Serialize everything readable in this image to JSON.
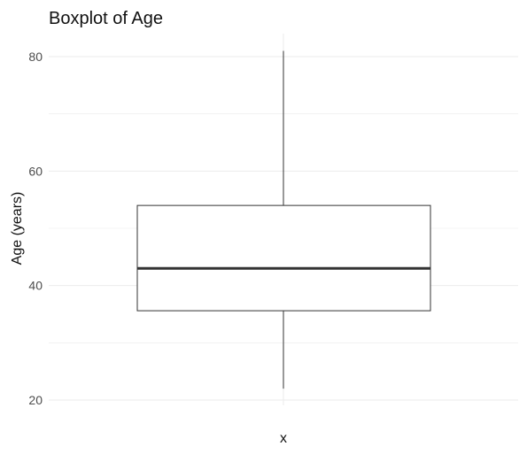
{
  "chart_data": {
    "type": "boxplot",
    "title": "Boxplot of Age",
    "xlabel": "x",
    "ylabel": "Age (years)",
    "ylim": [
      17,
      84
    ],
    "yticks": [
      20,
      40,
      60,
      80
    ],
    "grid": true,
    "box": {
      "min": 22,
      "q1": 35.6,
      "median": 43,
      "q3": 54,
      "max": 81
    }
  }
}
